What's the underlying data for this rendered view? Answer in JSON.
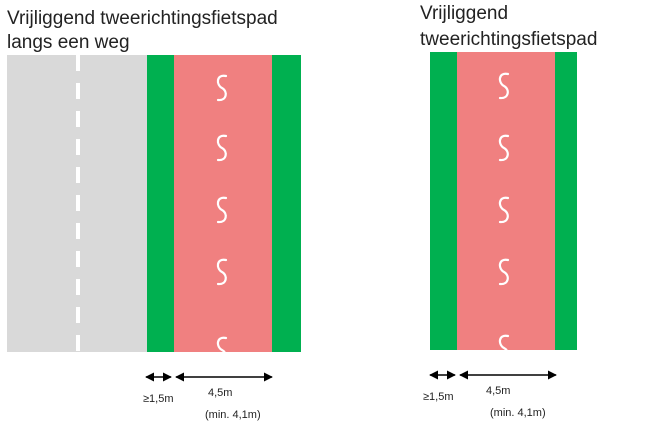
{
  "panels": [
    {
      "title_lines": [
        "Vrijliggend tweerichtingsfietspad",
        "langs een weg"
      ],
      "labels": {
        "buffer": "≥1,5m",
        "width": "4,5m",
        "minimum": "(min. 4,1m)"
      }
    },
    {
      "title_lines": [
        "Vrijliggend",
        "tweerichtingsfietspad"
      ],
      "labels": {
        "buffer": "≥1,5m",
        "width": "4,5m",
        "minimum": "(min. 4,1m)"
      }
    }
  ]
}
